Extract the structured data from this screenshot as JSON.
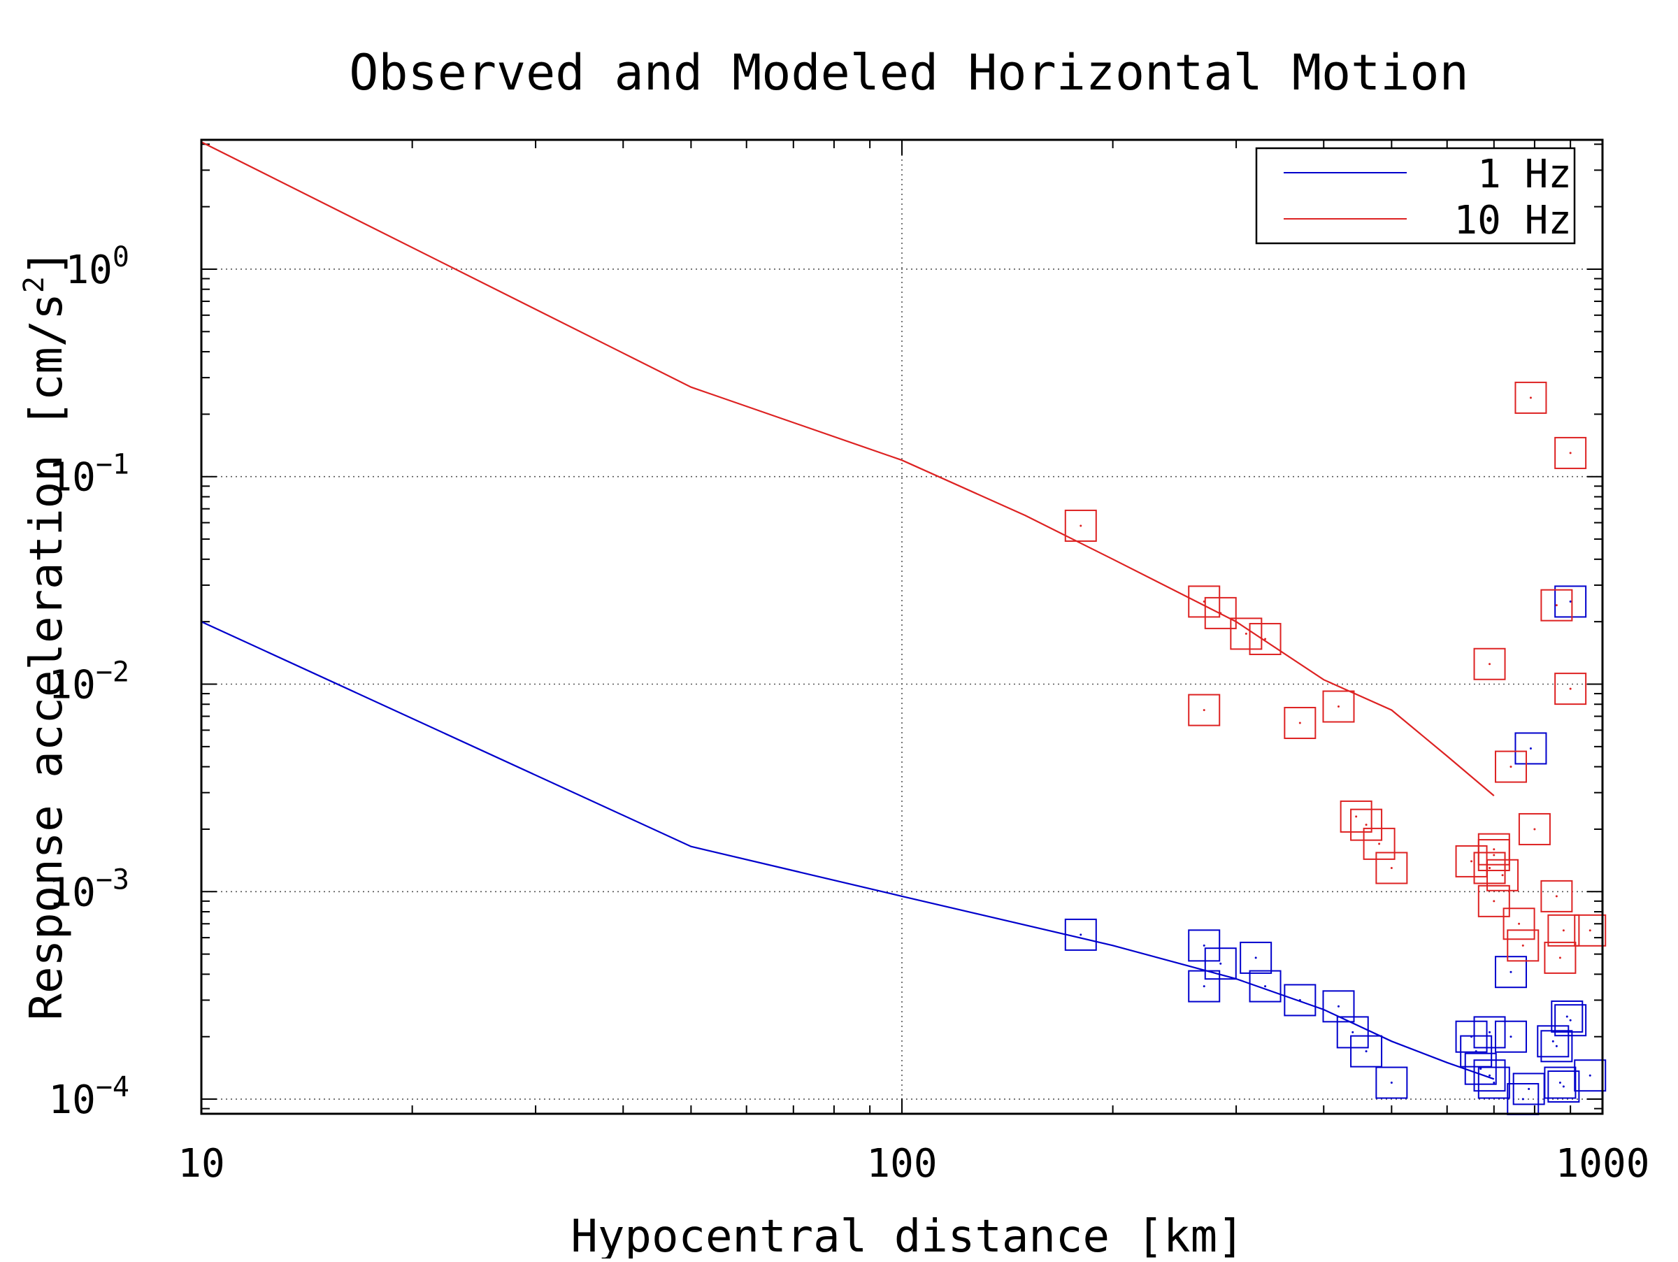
{
  "chart_data": {
    "type": "scatter",
    "title": "Observed and Modeled Horizontal Motion",
    "xlabel": "Hypocentral distance [km]",
    "ylabel_text": "Response acceleration [cm/s",
    "ylabel_exponent": "2",
    "ylabel_close": "]",
    "xscale": "log",
    "yscale": "log",
    "xlim": [
      10,
      1000
    ],
    "ylim": [
      8.5e-05,
      4.2
    ],
    "grid": true,
    "legend_position": "top-right",
    "x_ticks": [
      {
        "value": 10,
        "label": "10"
      },
      {
        "value": 100,
        "label": "100"
      },
      {
        "value": 1000,
        "label": "1000"
      }
    ],
    "y_ticks": [
      {
        "value": 1,
        "base": "10",
        "exponent": "0"
      },
      {
        "value": 0.1,
        "base": "10",
        "exponent": "−1"
      },
      {
        "value": 0.01,
        "base": "10",
        "exponent": "−2"
      },
      {
        "value": 0.001,
        "base": "10",
        "exponent": "−3"
      },
      {
        "value": 0.0001,
        "base": "10",
        "exponent": "−4"
      }
    ],
    "series": [
      {
        "name": "1 Hz",
        "color": "#0000cc",
        "model_line": [
          [
            10,
            0.02
          ],
          [
            50,
            0.00165
          ],
          [
            100,
            0.00095
          ],
          [
            200,
            0.00055
          ],
          [
            300,
            0.00038
          ],
          [
            400,
            0.00027
          ],
          [
            500,
            0.00019
          ],
          [
            600,
            0.00015
          ],
          [
            700,
            0.000125
          ]
        ],
        "observations": [
          [
            180,
            0.00062
          ],
          [
            270,
            0.00055
          ],
          [
            270,
            0.00035
          ],
          [
            285,
            0.00045
          ],
          [
            320,
            0.00048
          ],
          [
            330,
            0.00035
          ],
          [
            370,
            0.0003
          ],
          [
            420,
            0.00028
          ],
          [
            440,
            0.00021
          ],
          [
            460,
            0.00017
          ],
          [
            500,
            0.00012
          ],
          [
            650,
            0.0002
          ],
          [
            660,
            0.00017
          ],
          [
            670,
            0.00014
          ],
          [
            690,
            0.00021
          ],
          [
            690,
            0.00013
          ],
          [
            700,
            0.00012
          ],
          [
            740,
            0.0002
          ],
          [
            740,
            0.00041
          ],
          [
            770,
            0.0001
          ],
          [
            785,
            0.000112
          ],
          [
            790,
            0.0049
          ],
          [
            850,
            0.00019
          ],
          [
            860,
            0.00018
          ],
          [
            870,
            0.00012
          ],
          [
            880,
            0.000115
          ],
          [
            890,
            0.00025
          ],
          [
            900,
            0.00024
          ],
          [
            900,
            0.025
          ],
          [
            960,
            0.00013
          ]
        ]
      },
      {
        "name": "10 Hz",
        "color": "#dd2222",
        "model_line": [
          [
            10,
            4.1
          ],
          [
            50,
            0.27
          ],
          [
            100,
            0.12
          ],
          [
            150,
            0.065
          ],
          [
            200,
            0.04
          ],
          [
            300,
            0.02
          ],
          [
            400,
            0.0105
          ],
          [
            500,
            0.0075
          ],
          [
            600,
            0.0045
          ],
          [
            700,
            0.0029
          ]
        ],
        "observations": [
          [
            180,
            0.058
          ],
          [
            270,
            0.025
          ],
          [
            270,
            0.0075
          ],
          [
            285,
            0.022
          ],
          [
            310,
            0.0175
          ],
          [
            330,
            0.0165
          ],
          [
            370,
            0.0065
          ],
          [
            420,
            0.0078
          ],
          [
            445,
            0.0023
          ],
          [
            460,
            0.0021
          ],
          [
            480,
            0.0017
          ],
          [
            500,
            0.0013
          ],
          [
            650,
            0.0014
          ],
          [
            690,
            0.0013
          ],
          [
            690,
            0.0013
          ],
          [
            690,
            0.0125
          ],
          [
            700,
            0.0016
          ],
          [
            700,
            0.0015
          ],
          [
            700,
            0.0009
          ],
          [
            720,
            0.0012
          ],
          [
            740,
            0.004
          ],
          [
            760,
            0.0007
          ],
          [
            770,
            0.00055
          ],
          [
            790,
            0.24
          ],
          [
            800,
            0.002
          ],
          [
            860,
            0.00095
          ],
          [
            860,
            0.024
          ],
          [
            870,
            0.00048
          ],
          [
            880,
            0.00065
          ],
          [
            900,
            0.0095
          ],
          [
            900,
            0.13
          ],
          [
            960,
            0.00065
          ]
        ]
      }
    ]
  }
}
